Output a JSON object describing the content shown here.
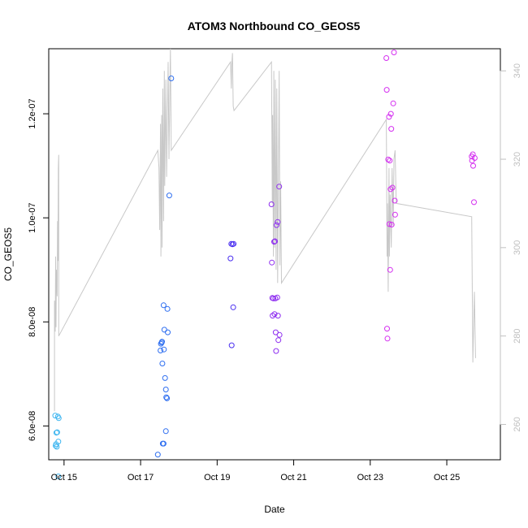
{
  "chart_data": {
    "type": "scatter",
    "title": "ATOM3 Northbound CO_GEOS5",
    "xlabel": "Date",
    "ylabel": "CO_GEOS5",
    "x_range_days": [
      14.6,
      26.4
    ],
    "xlim": [
      "2017-10-14",
      "2017-10-26"
    ],
    "ylim": [
      5.35e-08,
      1.325e-07
    ],
    "y2lim": [
      252,
      345
    ],
    "x_ticks": [
      {
        "label": "Oct 15",
        "day": 15
      },
      {
        "label": "Oct 17",
        "day": 17
      },
      {
        "label": "Oct 19",
        "day": 19
      },
      {
        "label": "Oct 21",
        "day": 21
      },
      {
        "label": "Oct 23",
        "day": 23
      },
      {
        "label": "Oct 25",
        "day": 25
      }
    ],
    "y_ticks": [
      {
        "label": "6.0e-08",
        "value": 6e-08
      },
      {
        "label": "8.0e-08",
        "value": 8e-08
      },
      {
        "label": "1.0e-07",
        "value": 1e-07
      },
      {
        "label": "1.2e-07",
        "value": 1.2e-07
      }
    ],
    "y2_ticks": [
      {
        "label": "260",
        "value": 260
      },
      {
        "label": "280",
        "value": 280
      },
      {
        "label": "300",
        "value": 300
      },
      {
        "label": "320",
        "value": 320
      },
      {
        "label": "340",
        "value": 340
      }
    ],
    "points": [
      {
        "day": 14.77,
        "value": 6.2e-08,
        "color": "#3fb6f0"
      },
      {
        "day": 14.78,
        "value": 5.62e-08,
        "color": "#3fb6f0"
      },
      {
        "day": 14.79,
        "value": 5.65e-08,
        "color": "#3fb6f0"
      },
      {
        "day": 14.8,
        "value": 5.87e-08,
        "color": "#3fb6f0"
      },
      {
        "day": 14.81,
        "value": 5.6e-08,
        "color": "#3fb6f0"
      },
      {
        "day": 14.82,
        "value": 5.88e-08,
        "color": "#3fb6f0"
      },
      {
        "day": 14.84,
        "value": 6.18e-08,
        "color": "#3fb6f0"
      },
      {
        "day": 14.85,
        "value": 5.7e-08,
        "color": "#3fb6f0"
      },
      {
        "day": 14.86,
        "value": 6.15e-08,
        "color": "#3fb6f0"
      },
      {
        "day": 14.85,
        "value": 5.03e-08,
        "color": "#3fb6f0"
      },
      {
        "day": 17.45,
        "value": 5.45e-08,
        "color": "#2f6ff0"
      },
      {
        "day": 17.52,
        "value": 7.45e-08,
        "color": "#2f6ff0"
      },
      {
        "day": 17.53,
        "value": 7.58e-08,
        "color": "#2f6ff0"
      },
      {
        "day": 17.55,
        "value": 7.6e-08,
        "color": "#2f6ff0"
      },
      {
        "day": 17.56,
        "value": 7.62e-08,
        "color": "#2f6ff0"
      },
      {
        "day": 17.57,
        "value": 7.2e-08,
        "color": "#2f6ff0"
      },
      {
        "day": 17.58,
        "value": 5.66e-08,
        "color": "#2f6ff0"
      },
      {
        "day": 17.6,
        "value": 5.66e-08,
        "color": "#2f6ff0"
      },
      {
        "day": 17.6,
        "value": 8.32e-08,
        "color": "#2f6ff0"
      },
      {
        "day": 17.61,
        "value": 7.47e-08,
        "color": "#2f6ff0"
      },
      {
        "day": 17.62,
        "value": 7.85e-08,
        "color": "#2f6ff0"
      },
      {
        "day": 17.64,
        "value": 6.92e-08,
        "color": "#2f6ff0"
      },
      {
        "day": 17.66,
        "value": 6.7e-08,
        "color": "#2f6ff0"
      },
      {
        "day": 17.66,
        "value": 5.9e-08,
        "color": "#2f6ff0"
      },
      {
        "day": 17.67,
        "value": 6.55e-08,
        "color": "#2f6ff0"
      },
      {
        "day": 17.69,
        "value": 6.53e-08,
        "color": "#2f6ff0"
      },
      {
        "day": 17.7,
        "value": 8.25e-08,
        "color": "#2f6ff0"
      },
      {
        "day": 17.71,
        "value": 7.8e-08,
        "color": "#2f6ff0"
      },
      {
        "day": 17.75,
        "value": 1.043e-07,
        "color": "#2f6ff0"
      },
      {
        "day": 17.8,
        "value": 1.268e-07,
        "color": "#2f6ff0"
      },
      {
        "day": 19.35,
        "value": 9.22e-08,
        "color": "#4a2ff0"
      },
      {
        "day": 19.37,
        "value": 9.5e-08,
        "color": "#4a2ff0"
      },
      {
        "day": 19.38,
        "value": 7.55e-08,
        "color": "#4a2ff0"
      },
      {
        "day": 19.4,
        "value": 9.49e-08,
        "color": "#4a2ff0"
      },
      {
        "day": 19.42,
        "value": 8.28e-08,
        "color": "#4a2ff0"
      },
      {
        "day": 19.43,
        "value": 9.5e-08,
        "color": "#4a2ff0"
      },
      {
        "day": 20.42,
        "value": 1.026e-07,
        "color": "#8f2ff0"
      },
      {
        "day": 20.43,
        "value": 9.14e-08,
        "color": "#8f2ff0"
      },
      {
        "day": 20.44,
        "value": 8.46e-08,
        "color": "#8f2ff0"
      },
      {
        "day": 20.45,
        "value": 8.12e-08,
        "color": "#8f2ff0"
      },
      {
        "day": 20.47,
        "value": 8.45e-08,
        "color": "#8f2ff0"
      },
      {
        "day": 20.49,
        "value": 9.54e-08,
        "color": "#8f2ff0"
      },
      {
        "day": 20.5,
        "value": 8.15e-08,
        "color": "#8f2ff0"
      },
      {
        "day": 20.51,
        "value": 9.55e-08,
        "color": "#8f2ff0"
      },
      {
        "day": 20.52,
        "value": 8.45e-08,
        "color": "#8f2ff0"
      },
      {
        "day": 20.53,
        "value": 7.8e-08,
        "color": "#8f2ff0"
      },
      {
        "day": 20.54,
        "value": 7.44e-08,
        "color": "#8f2ff0"
      },
      {
        "day": 20.55,
        "value": 9.86e-08,
        "color": "#8f2ff0"
      },
      {
        "day": 20.57,
        "value": 8.47e-08,
        "color": "#8f2ff0"
      },
      {
        "day": 20.58,
        "value": 9.92e-08,
        "color": "#8f2ff0"
      },
      {
        "day": 20.59,
        "value": 8.12e-08,
        "color": "#8f2ff0"
      },
      {
        "day": 20.6,
        "value": 7.65e-08,
        "color": "#8f2ff0"
      },
      {
        "day": 20.62,
        "value": 1.06e-07,
        "color": "#8f2ff0"
      },
      {
        "day": 20.63,
        "value": 7.75e-08,
        "color": "#8f2ff0"
      },
      {
        "day": 23.42,
        "value": 1.307e-07,
        "color": "#d42ff0"
      },
      {
        "day": 23.43,
        "value": 1.246e-07,
        "color": "#d42ff0"
      },
      {
        "day": 23.44,
        "value": 7.87e-08,
        "color": "#d42ff0"
      },
      {
        "day": 23.45,
        "value": 7.68e-08,
        "color": "#d42ff0"
      },
      {
        "day": 23.47,
        "value": 1.112e-07,
        "color": "#d42ff0"
      },
      {
        "day": 23.49,
        "value": 1.194e-07,
        "color": "#d42ff0"
      },
      {
        "day": 23.5,
        "value": 9.88e-08,
        "color": "#d42ff0"
      },
      {
        "day": 23.51,
        "value": 1.11e-07,
        "color": "#d42ff0"
      },
      {
        "day": 23.52,
        "value": 9e-08,
        "color": "#d42ff0"
      },
      {
        "day": 23.53,
        "value": 1.055e-07,
        "color": "#d42ff0"
      },
      {
        "day": 23.54,
        "value": 1.2e-07,
        "color": "#d42ff0"
      },
      {
        "day": 23.55,
        "value": 1.171e-07,
        "color": "#d42ff0"
      },
      {
        "day": 23.56,
        "value": 9.87e-08,
        "color": "#d42ff0"
      },
      {
        "day": 23.58,
        "value": 1.058e-07,
        "color": "#d42ff0"
      },
      {
        "day": 23.6,
        "value": 1.22e-07,
        "color": "#d42ff0"
      },
      {
        "day": 23.62,
        "value": 1.318e-07,
        "color": "#d42ff0"
      },
      {
        "day": 23.64,
        "value": 1.033e-07,
        "color": "#d42ff0"
      },
      {
        "day": 23.65,
        "value": 1.006e-07,
        "color": "#d42ff0"
      },
      {
        "day": 25.65,
        "value": 1.118e-07,
        "color": "#d42ff0"
      },
      {
        "day": 25.66,
        "value": 1.11e-07,
        "color": "#d42ff0"
      },
      {
        "day": 25.68,
        "value": 1.122e-07,
        "color": "#d42ff0"
      },
      {
        "day": 25.69,
        "value": 1.1e-07,
        "color": "#d42ff0"
      },
      {
        "day": 25.71,
        "value": 1.03e-07,
        "color": "#d42ff0"
      },
      {
        "day": 25.73,
        "value": 1.115e-07,
        "color": "#d42ff0"
      }
    ],
    "line_color": "#c8c8c8",
    "line_y2": [
      [
        14.75,
        263
      ],
      [
        14.75,
        288
      ],
      [
        14.77,
        281
      ],
      [
        14.78,
        298
      ],
      [
        14.79,
        282
      ],
      [
        14.8,
        295
      ],
      [
        14.82,
        289
      ],
      [
        14.83,
        306
      ],
      [
        14.84,
        297
      ],
      [
        14.85,
        318
      ],
      [
        14.86,
        321
      ],
      [
        14.86,
        280
      ],
      [
        17.45,
        322
      ],
      [
        17.48,
        318
      ],
      [
        17.5,
        304
      ],
      [
        17.52,
        328
      ],
      [
        17.53,
        298
      ],
      [
        17.55,
        330
      ],
      [
        17.56,
        300
      ],
      [
        17.58,
        336
      ],
      [
        17.6,
        306
      ],
      [
        17.62,
        340
      ],
      [
        17.63,
        314
      ],
      [
        17.66,
        338
      ],
      [
        17.68,
        316
      ],
      [
        17.72,
        342
      ],
      [
        17.74,
        320
      ],
      [
        17.78,
        345
      ],
      [
        17.8,
        322
      ],
      [
        19.35,
        342
      ],
      [
        19.37,
        336
      ],
      [
        19.38,
        341
      ],
      [
        19.4,
        344
      ],
      [
        19.42,
        332
      ],
      [
        19.44,
        331
      ],
      [
        20.42,
        342
      ],
      [
        20.44,
        310
      ],
      [
        20.45,
        330
      ],
      [
        20.47,
        298
      ],
      [
        20.48,
        340
      ],
      [
        20.5,
        300
      ],
      [
        20.52,
        338
      ],
      [
        20.54,
        295
      ],
      [
        20.56,
        336
      ],
      [
        20.58,
        292
      ],
      [
        20.62,
        340
      ],
      [
        20.64,
        296
      ],
      [
        20.66,
        315
      ],
      [
        20.68,
        292
      ],
      [
        23.42,
        329
      ],
      [
        23.44,
        298
      ],
      [
        23.45,
        310
      ],
      [
        23.47,
        290
      ],
      [
        23.49,
        318
      ],
      [
        23.5,
        298
      ],
      [
        23.52,
        312
      ],
      [
        23.55,
        300
      ],
      [
        23.57,
        318
      ],
      [
        23.6,
        305
      ],
      [
        23.62,
        320
      ],
      [
        23.65,
        322
      ],
      [
        23.68,
        310
      ],
      [
        25.65,
        307
      ],
      [
        25.68,
        274
      ],
      [
        25.72,
        290
      ],
      [
        25.75,
        275
      ]
    ]
  }
}
